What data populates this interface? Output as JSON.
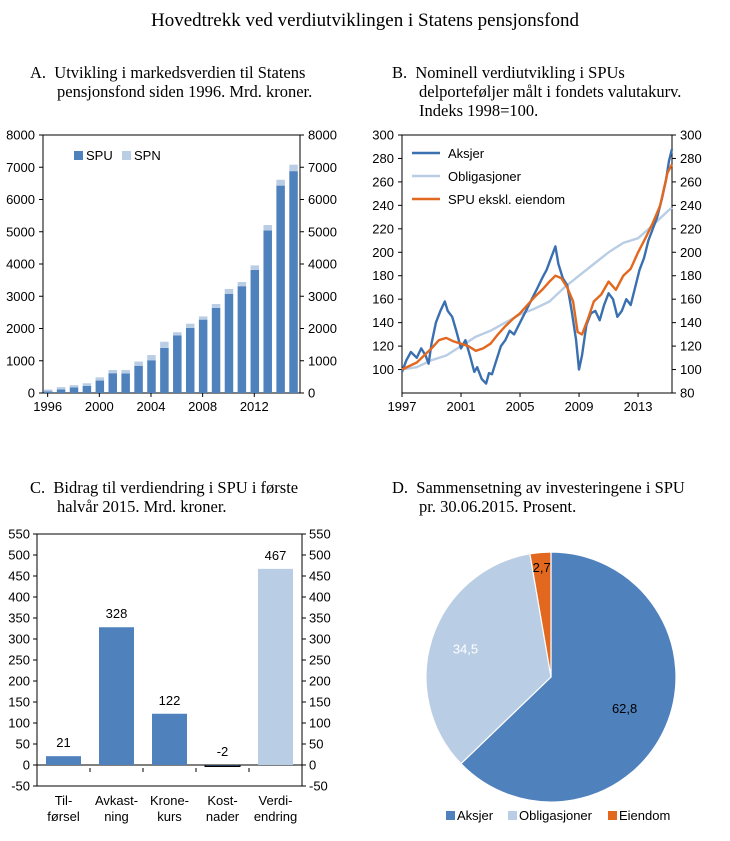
{
  "main_title": "Hovedtrekk ved verdiutviklingen i Statens pensjonsfond",
  "chart_data": [
    {
      "id": "A",
      "type": "bar",
      "title_lines": [
        "A.  Utvikling i markedsverdien til Statens",
        "pensjonsfond siden 1996. Mrd. kroner."
      ],
      "x": [
        1996,
        1997,
        1998,
        1999,
        2000,
        2001,
        2002,
        2003,
        2004,
        2005,
        2006,
        2007,
        2008,
        2009,
        2010,
        2011,
        2012,
        2013,
        2014,
        2015
      ],
      "x_tick_labels": [
        "1996",
        "2000",
        "2004",
        "2008",
        "2012"
      ],
      "x_tick_values": [
        1996,
        2000,
        2004,
        2008,
        2012
      ],
      "ylim": [
        0,
        8000
      ],
      "y_ticks": [
        0,
        1000,
        2000,
        3000,
        4000,
        5000,
        6000,
        7000,
        8000
      ],
      "y_tick_labels": [
        "0",
        "1000",
        "2000",
        "3000",
        "4000",
        "5000",
        "6000",
        "7000",
        "8000"
      ],
      "stacked": true,
      "series": [
        {
          "name": "SPU",
          "color": "#4f81bd",
          "values": [
            48,
            113,
            172,
            222,
            386,
            614,
            604,
            845,
            1016,
            1399,
            1784,
            2019,
            2275,
            2640,
            3077,
            3312,
            3816,
            5038,
            6431,
            6880
          ]
        },
        {
          "name": "SPN",
          "color": "#b9cde5",
          "values": [
            60,
            70,
            70,
            80,
            100,
            100,
            110,
            130,
            160,
            190,
            100,
            130,
            100,
            120,
            150,
            130,
            140,
            170,
            180,
            200
          ]
        }
      ],
      "legend": "top-left"
    },
    {
      "id": "B",
      "type": "line",
      "title_lines": [
        "B.  Nominell verdiutvikling i SPUs",
        "delporteføljer målt i fondets valutakurv.",
        "Indeks 1998=100."
      ],
      "xlim": [
        1997,
        2015.3
      ],
      "x_tick_labels": [
        "1997",
        "2001",
        "2005",
        "2009",
        "2013"
      ],
      "x_tick_values": [
        1997,
        2001,
        2005,
        2009,
        2013
      ],
      "ylim": [
        80,
        300
      ],
      "y_ticks_left": [
        100,
        120,
        140,
        160,
        180,
        200,
        220,
        240,
        260,
        280,
        300
      ],
      "y_ticks_right": [
        80,
        100,
        120,
        140,
        160,
        180,
        200,
        220,
        240,
        260,
        280,
        300
      ],
      "series": [
        {
          "name": "Aksjer",
          "color": "#3a6fb0",
          "x": [
            1997,
            1997.3,
            1997.6,
            1998,
            1998.3,
            1998.6,
            1998.8,
            1999,
            1999.3,
            1999.6,
            1999.9,
            2000.1,
            2000.4,
            2000.7,
            2001,
            2001.3,
            2001.6,
            2001.9,
            2002.1,
            2002.4,
            2002.7,
            2002.9,
            2003.1,
            2003.4,
            2003.7,
            2004,
            2004.3,
            2004.6,
            2005,
            2005.4,
            2005.8,
            2006.2,
            2006.5,
            2006.8,
            2007.1,
            2007.4,
            2007.6,
            2007.9,
            2008.2,
            2008.5,
            2008.8,
            2009,
            2009.2,
            2009.5,
            2009.8,
            2010.1,
            2010.4,
            2010.7,
            2011,
            2011.3,
            2011.6,
            2011.9,
            2012.2,
            2012.5,
            2012.8,
            2013.1,
            2013.4,
            2013.7,
            2014,
            2014.3,
            2014.6,
            2014.9,
            2015.1,
            2015.3
          ],
          "y": [
            98,
            108,
            115,
            110,
            118,
            112,
            105,
            122,
            140,
            150,
            158,
            150,
            145,
            132,
            118,
            125,
            112,
            98,
            102,
            92,
            88,
            97,
            96,
            108,
            120,
            125,
            133,
            130,
            140,
            150,
            160,
            170,
            178,
            185,
            195,
            205,
            190,
            178,
            172,
            150,
            125,
            100,
            112,
            138,
            148,
            150,
            142,
            155,
            165,
            160,
            145,
            150,
            160,
            155,
            170,
            185,
            195,
            210,
            220,
            230,
            245,
            262,
            278,
            288
          ]
        },
        {
          "name": "Obligasjoner",
          "color": "#b9cde5",
          "x": [
            1997,
            1998,
            1999,
            2000,
            2001,
            2002,
            2003,
            2004,
            2005,
            2006,
            2007,
            2008,
            2009,
            2010,
            2011,
            2012,
            2013,
            2014,
            2015,
            2015.3
          ],
          "y": [
            100,
            102,
            108,
            112,
            120,
            128,
            133,
            140,
            147,
            152,
            158,
            170,
            180,
            190,
            200,
            208,
            212,
            223,
            235,
            238
          ]
        },
        {
          "name": "SPU ekskl. eiendom",
          "color": "#e2681f",
          "x": [
            1997,
            1997.5,
            1998,
            1998.5,
            1999,
            1999.5,
            2000,
            2000.5,
            2001,
            2001.5,
            2002,
            2002.5,
            2003,
            2003.5,
            2004,
            2004.5,
            2005,
            2005.5,
            2006,
            2006.5,
            2007,
            2007.4,
            2007.8,
            2008.2,
            2008.6,
            2008.9,
            2009.2,
            2009.6,
            2010,
            2010.5,
            2011,
            2011.5,
            2012,
            2012.5,
            2013,
            2013.5,
            2014,
            2014.5,
            2015,
            2015.3
          ],
          "y": [
            100,
            103,
            106,
            112,
            118,
            125,
            127,
            124,
            122,
            120,
            116,
            118,
            122,
            130,
            137,
            143,
            148,
            155,
            162,
            168,
            175,
            180,
            178,
            170,
            158,
            132,
            130,
            143,
            158,
            164,
            175,
            168,
            180,
            186,
            200,
            212,
            225,
            240,
            268,
            275
          ]
        }
      ],
      "legend": "top-left"
    },
    {
      "id": "C",
      "type": "bar",
      "title_lines": [
        "C.  Bidrag til verdiendring i SPU i første",
        "halvår 2015. Mrd. kroner."
      ],
      "categories": [
        [
          "Til-",
          "førsel"
        ],
        [
          "Avkast-",
          "ning"
        ],
        [
          "Krone-",
          "kurs"
        ],
        [
          "Kost-",
          "nader"
        ],
        [
          "Verdi-",
          "endring"
        ]
      ],
      "values": [
        21,
        328,
        122,
        -2,
        467
      ],
      "value_labels": [
        "21",
        "328",
        "122",
        "-2",
        "467"
      ],
      "colors": [
        "#4f81bd",
        "#4f81bd",
        "#4f81bd",
        "#4f81bd",
        "#b9cde5"
      ],
      "ylim": [
        -50,
        550
      ],
      "y_ticks": [
        -50,
        0,
        50,
        100,
        150,
        200,
        250,
        300,
        350,
        400,
        450,
        500,
        550
      ],
      "y_tick_labels": [
        "-50",
        "0",
        "50",
        "100",
        "150",
        "200",
        "250",
        "300",
        "350",
        "400",
        "450",
        "500",
        "550"
      ]
    },
    {
      "id": "D",
      "type": "pie",
      "title_lines": [
        "D.  Sammensetning av investeringene i SPU",
        "pr. 30.06.2015. Prosent."
      ],
      "slices": [
        {
          "name": "Aksjer",
          "value": 62.8,
          "label": "62,8",
          "color": "#4f81bd",
          "label_color": "#000000"
        },
        {
          "name": "Obligasjoner",
          "value": 34.5,
          "label": "34,5",
          "color": "#b9cde5",
          "label_color": "#ffffff"
        },
        {
          "name": "Eiendom",
          "value": 2.7,
          "label": "2,7",
          "color": "#e2681f",
          "label_color": "#000000"
        }
      ],
      "legend": "bottom"
    }
  ]
}
